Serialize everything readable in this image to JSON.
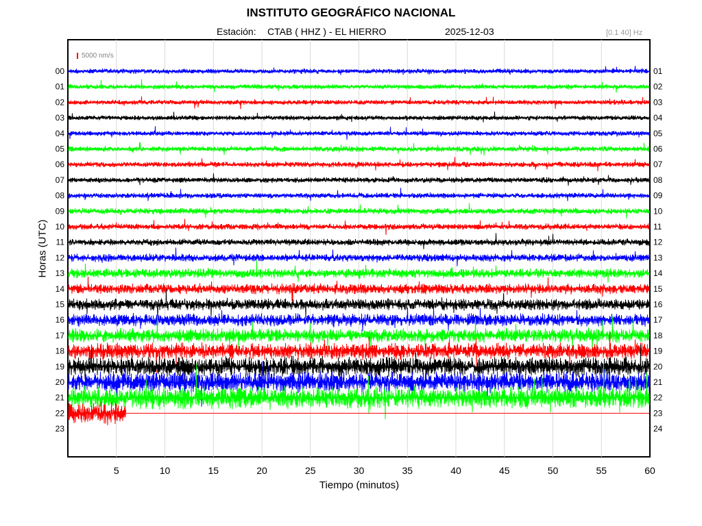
{
  "header": {
    "title": "INSTITUTO GEOGRÁFICO NACIONAL",
    "station_prefix": "Estación:",
    "station": "CTAB ( HHZ ) - EL HIERRO",
    "date": "2025-12-03",
    "filter": "[0.1 40] Hz",
    "scale": "5000 nm/s"
  },
  "colors": {
    "blue": "#0000ff",
    "green": "#00ff00",
    "red": "#ff0000",
    "black": "#000000",
    "line_cycle": [
      "#0000ff",
      "#00ff00",
      "#ff0000",
      "#000000"
    ]
  },
  "chart_data": {
    "type": "line",
    "title": "INSTITUTO GEOGRÁFICO NACIONAL",
    "xlabel": "Tiempo (minutos)",
    "ylabel": "Horas (UTC)",
    "xlim": [
      0,
      60
    ],
    "x_ticks": [
      5,
      10,
      15,
      20,
      25,
      30,
      35,
      40,
      45,
      50,
      55,
      60
    ],
    "y_ticks_left": [
      "00",
      "01",
      "02",
      "03",
      "04",
      "05",
      "06",
      "07",
      "08",
      "09",
      "10",
      "11",
      "12",
      "13",
      "14",
      "15",
      "16",
      "17",
      "18",
      "19",
      "20",
      "21",
      "22",
      "23"
    ],
    "y_ticks_right": [
      "01",
      "02",
      "03",
      "04",
      "05",
      "06",
      "07",
      "08",
      "09",
      "10",
      "11",
      "12",
      "13",
      "14",
      "15",
      "16",
      "17",
      "18",
      "19",
      "20",
      "21",
      "22",
      "23",
      "24"
    ],
    "grid": true,
    "series": [
      {
        "hour": 0,
        "color": "blue",
        "amplitude": 0.18,
        "end_minute": 60
      },
      {
        "hour": 1,
        "color": "green",
        "amplitude": 0.18,
        "end_minute": 60
      },
      {
        "hour": 2,
        "color": "red",
        "amplitude": 0.18,
        "end_minute": 60
      },
      {
        "hour": 3,
        "color": "black",
        "amplitude": 0.18,
        "end_minute": 60
      },
      {
        "hour": 4,
        "color": "blue",
        "amplitude": 0.18,
        "end_minute": 60
      },
      {
        "hour": 5,
        "color": "green",
        "amplitude": 0.2,
        "end_minute": 60
      },
      {
        "hour": 6,
        "color": "red",
        "amplitude": 0.2,
        "end_minute": 60
      },
      {
        "hour": 7,
        "color": "black",
        "amplitude": 0.2,
        "end_minute": 60
      },
      {
        "hour": 8,
        "color": "blue",
        "amplitude": 0.2,
        "end_minute": 60
      },
      {
        "hour": 9,
        "color": "green",
        "amplitude": 0.22,
        "end_minute": 60
      },
      {
        "hour": 10,
        "color": "red",
        "amplitude": 0.22,
        "end_minute": 60
      },
      {
        "hour": 11,
        "color": "black",
        "amplitude": 0.24,
        "end_minute": 60
      },
      {
        "hour": 12,
        "color": "blue",
        "amplitude": 0.28,
        "end_minute": 60
      },
      {
        "hour": 13,
        "color": "green",
        "amplitude": 0.34,
        "end_minute": 60
      },
      {
        "hour": 14,
        "color": "red",
        "amplitude": 0.38,
        "end_minute": 60
      },
      {
        "hour": 15,
        "color": "black",
        "amplitude": 0.42,
        "end_minute": 60
      },
      {
        "hour": 16,
        "color": "blue",
        "amplitude": 0.45,
        "end_minute": 60
      },
      {
        "hour": 17,
        "color": "green",
        "amplitude": 0.5,
        "end_minute": 60
      },
      {
        "hour": 18,
        "color": "red",
        "amplitude": 0.6,
        "end_minute": 60
      },
      {
        "hour": 19,
        "color": "black",
        "amplitude": 0.7,
        "end_minute": 60
      },
      {
        "hour": 20,
        "color": "blue",
        "amplitude": 0.75,
        "end_minute": 60
      },
      {
        "hour": 21,
        "color": "green",
        "amplitude": 0.8,
        "end_minute": 60
      },
      {
        "hour": 22,
        "color": "red",
        "amplitude": 0.8,
        "end_minute": 6
      }
    ]
  }
}
